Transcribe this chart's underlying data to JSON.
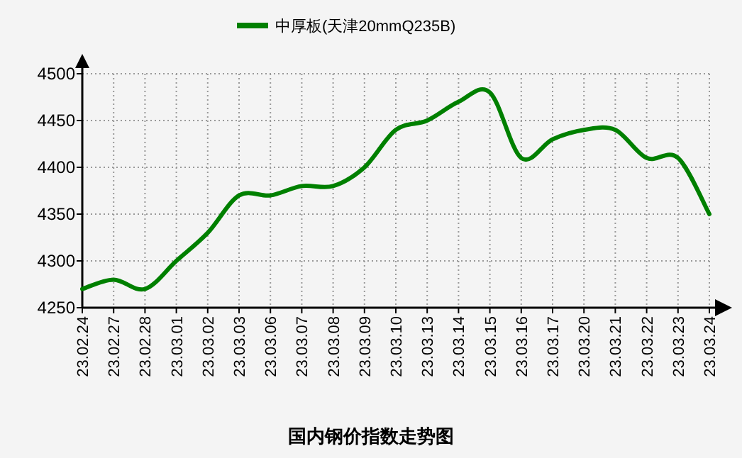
{
  "chart_data": {
    "type": "line",
    "title": "国内钢价指数走势图",
    "categories": [
      "23.02.24",
      "23.02.27",
      "23.02.28",
      "23.03.01",
      "23.03.02",
      "23.03.03",
      "23.03.06",
      "23.03.07",
      "23.03.08",
      "23.03.09",
      "23.03.10",
      "23.03.13",
      "23.03.14",
      "23.03.15",
      "23.03.16",
      "23.03.17",
      "23.03.20",
      "23.03.21",
      "23.03.22",
      "23.03.23",
      "23.03.24"
    ],
    "series": [
      {
        "name": "中厚板(天津20mmQ235B)",
        "color": "#008000",
        "values": [
          4270,
          4280,
          4270,
          4300,
          4330,
          4370,
          4370,
          4380,
          4380,
          4400,
          4440,
          4450,
          4470,
          4480,
          4410,
          4430,
          4440,
          4440,
          4410,
          4410,
          4350
        ]
      }
    ],
    "ylim": [
      4250,
      4500
    ],
    "yticks": [
      4250,
      4300,
      4350,
      4400,
      4450,
      4500
    ],
    "grid": true,
    "legend": "top",
    "marker": "none",
    "line_style": "solid"
  }
}
